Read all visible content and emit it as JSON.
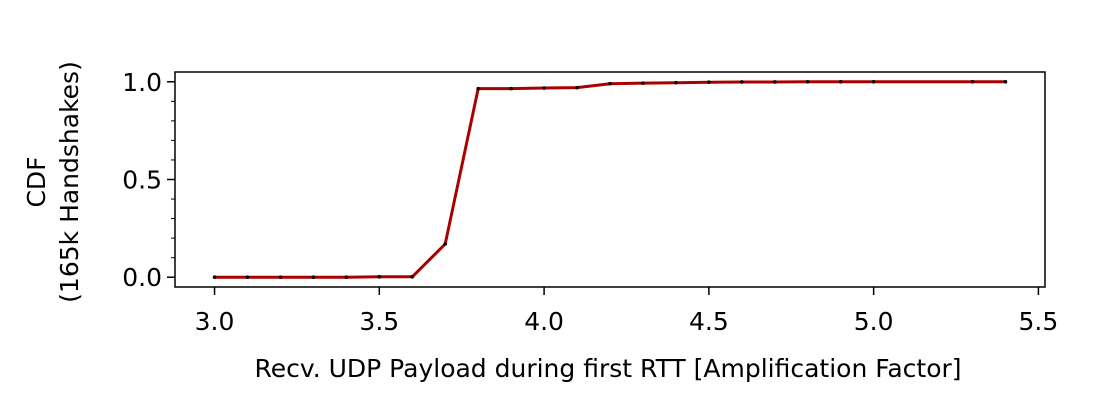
{
  "chart_data": {
    "type": "line",
    "title": "",
    "xlabel": "Recv. UDP Payload during first RTT [Amplification Factor]",
    "ylabel_lines": [
      "CDF",
      "(165k Handshakes)"
    ],
    "xlim": [
      2.88,
      5.52
    ],
    "ylim": [
      -0.05,
      1.05
    ],
    "xticks": [
      3.0,
      3.5,
      4.0,
      4.5,
      5.0,
      5.5
    ],
    "xtick_labels": [
      "3.0",
      "3.5",
      "4.0",
      "4.5",
      "5.0",
      "5.5"
    ],
    "yticks": [
      0.0,
      0.5,
      1.0
    ],
    "ytick_labels": [
      "0.0",
      "0.5",
      "1.0"
    ],
    "grid": false,
    "series": [
      {
        "color": "#aa0000",
        "x": [
          3.0,
          3.1,
          3.2,
          3.3,
          3.4,
          3.5,
          3.6,
          3.7,
          3.8,
          3.9,
          4.0,
          4.1,
          4.2,
          4.3,
          4.4,
          4.5,
          4.6,
          4.7,
          4.8,
          4.9,
          5.0,
          5.3,
          5.4
        ],
        "y": [
          0.0,
          0.0,
          0.0,
          0.0,
          0.0,
          0.002,
          0.002,
          0.17,
          0.965,
          0.965,
          0.968,
          0.97,
          0.99,
          0.993,
          0.995,
          0.998,
          0.999,
          0.999,
          1.0,
          1.0,
          1.0,
          1.0,
          1.0
        ]
      }
    ]
  }
}
